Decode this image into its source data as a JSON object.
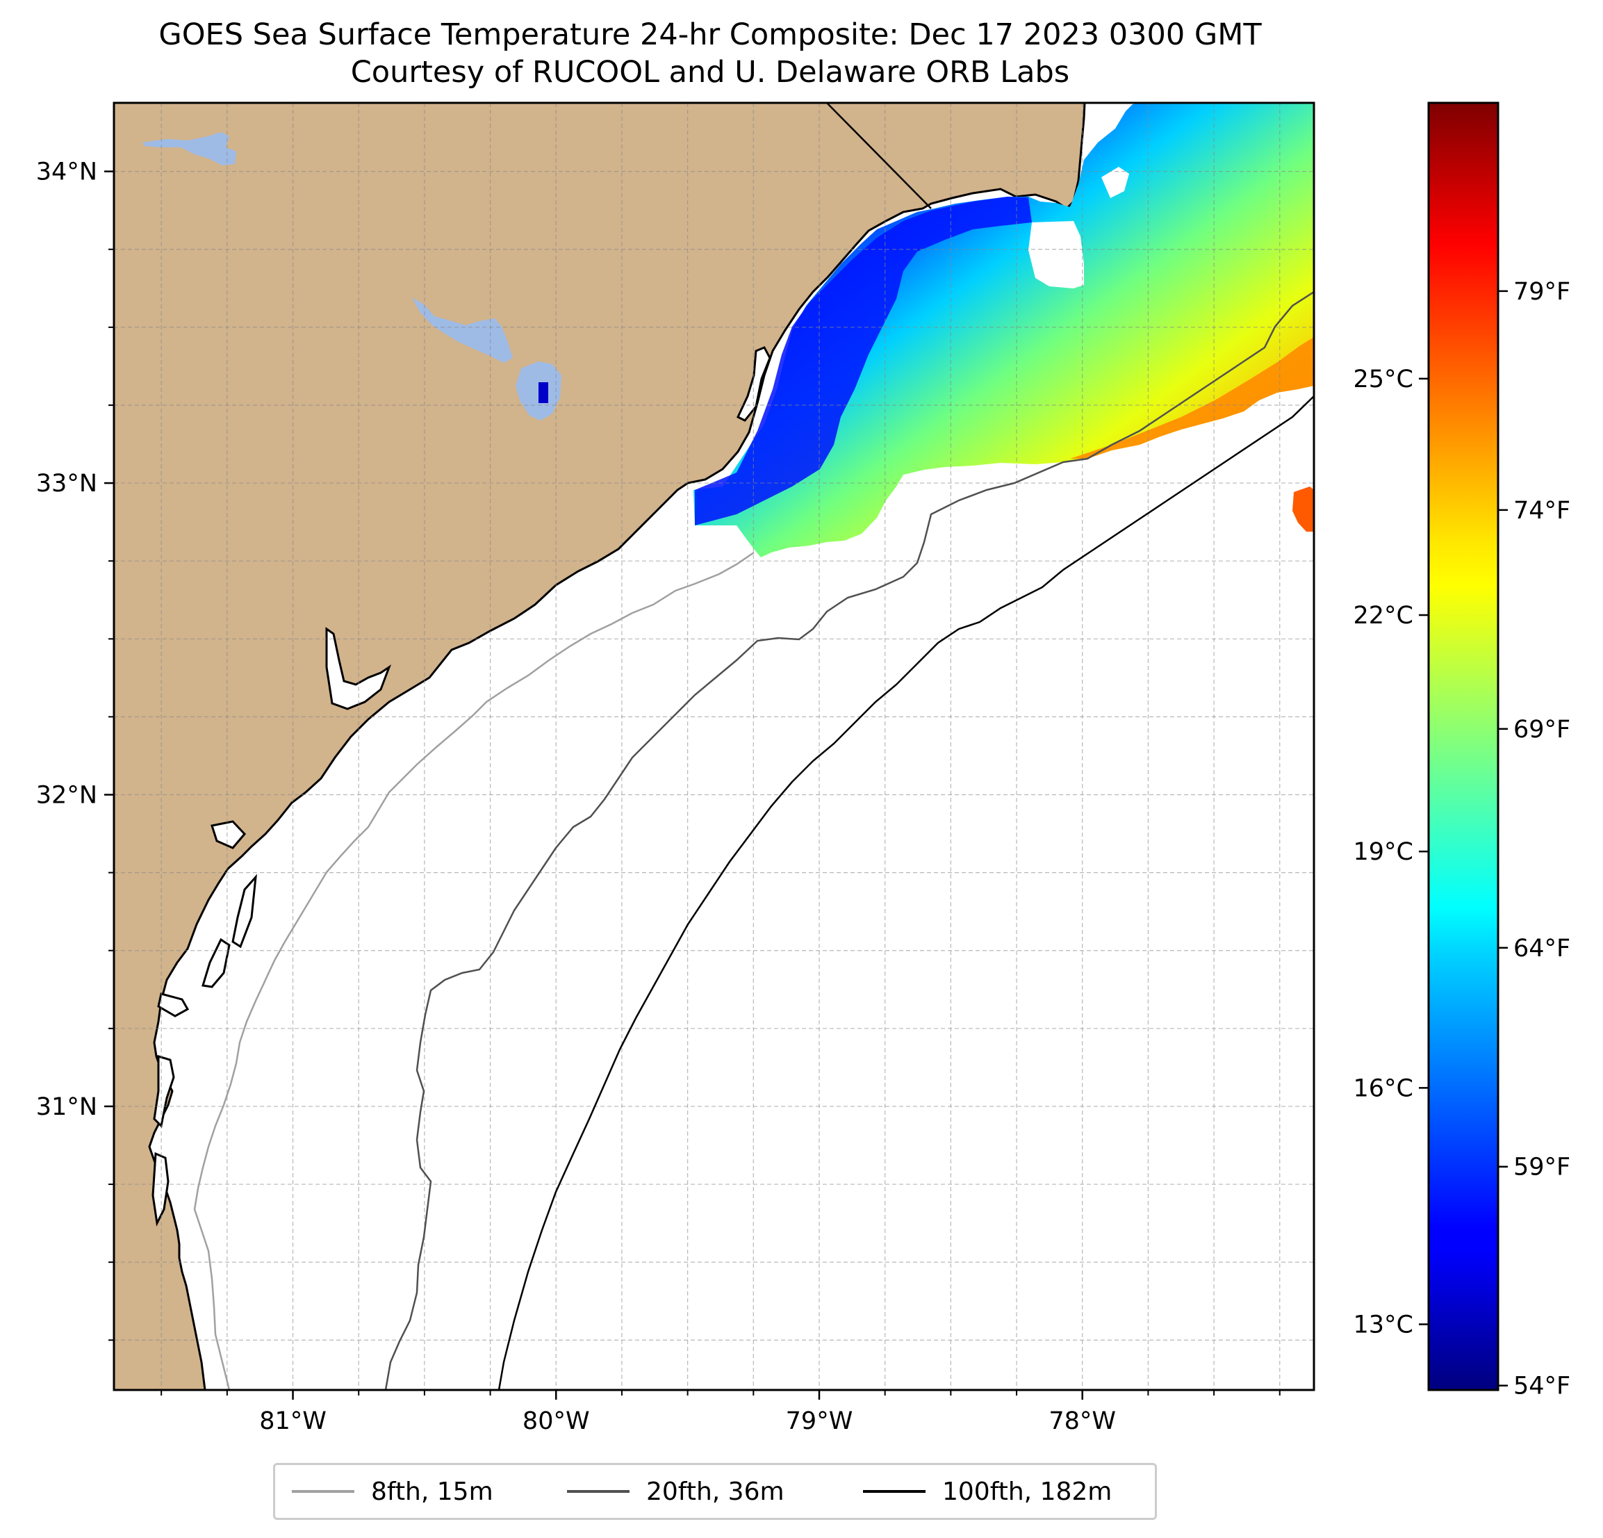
{
  "title": {
    "line1": "GOES Sea Surface Temperature 24-hr Composite: Dec 17 2023 0300 GMT",
    "line2": "Courtesy of RUCOOL and U. Delaware ORB Labs"
  },
  "map": {
    "lon_range": [
      -81.68,
      -77.12
    ],
    "lat_range": [
      30.09,
      34.22
    ],
    "lat_ticks": [
      {
        "value": 34,
        "label": "34°N"
      },
      {
        "value": 33,
        "label": "33°N"
      },
      {
        "value": 32,
        "label": "32°N"
      },
      {
        "value": 31,
        "label": "31°N"
      }
    ],
    "lon_ticks": [
      {
        "value": -81,
        "label": "81°W"
      },
      {
        "value": -80,
        "label": "80°W"
      },
      {
        "value": -79,
        "label": "79°W"
      },
      {
        "value": -78,
        "label": "78°W"
      }
    ],
    "grid": true,
    "land_color": "#d1b38c",
    "lake_color": "#9ebbe6"
  },
  "colorbar": {
    "colormap": "jet",
    "range_f": [
      53.9,
      83.3
    ],
    "celsius_ticks": [
      {
        "value": 13,
        "label": "13°C"
      },
      {
        "value": 16,
        "label": "16°C"
      },
      {
        "value": 19,
        "label": "19°C"
      },
      {
        "value": 22,
        "label": "22°C"
      },
      {
        "value": 25,
        "label": "25°C"
      }
    ],
    "fahrenheit_ticks": [
      {
        "value": 54,
        "label": "54°F"
      },
      {
        "value": 59,
        "label": "59°F"
      },
      {
        "value": 64,
        "label": "64°F"
      },
      {
        "value": 69,
        "label": "69°F"
      },
      {
        "value": 74,
        "label": "74°F"
      },
      {
        "value": 79,
        "label": "79°F"
      }
    ]
  },
  "legend": {
    "items": [
      {
        "label": "8fth, 15m",
        "color": "#a0a0a0"
      },
      {
        "label": "20fth, 36m",
        "color": "#505050"
      },
      {
        "label": "100fth, 182m",
        "color": "#000000"
      }
    ]
  }
}
